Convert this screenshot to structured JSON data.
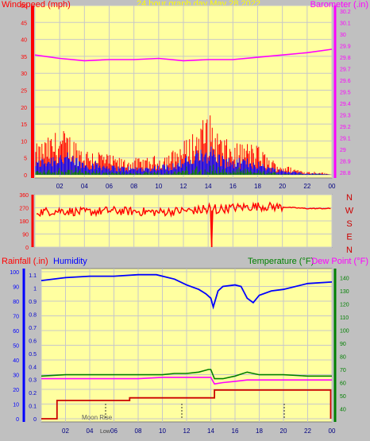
{
  "title": "24 hour graph day   May 28 2022",
  "colors": {
    "background": "#c0c0c0",
    "plot_bg": "#ffffa0",
    "grid": "#c8c8c8",
    "wind": "#ff0000",
    "gust_band": "#0000ff",
    "calm_band": "#008000",
    "barometer": "#ff00ff",
    "humidity": "#0000ff",
    "temperature": "#008000",
    "dewpoint": "#ff00ff",
    "rainfall": "#cc0000"
  },
  "chart_data": [
    {
      "id": "wind-baro",
      "type": "line",
      "labels": {
        "left": "Windspeed (mph)",
        "right": "Barometer (.in)"
      },
      "x_tick_labels": [
        "02",
        "04",
        "06",
        "08",
        "10",
        "12",
        "14",
        "16",
        "18",
        "20",
        "22",
        "00"
      ],
      "y_left": {
        "ticks": [
          0,
          5,
          10,
          15,
          20,
          25,
          30,
          35,
          40,
          45,
          50
        ],
        "range": [
          0,
          50
        ]
      },
      "y_right": {
        "ticks": [
          28.8,
          28.9,
          29.0,
          29.1,
          29.2,
          29.3,
          29.4,
          29.5,
          29.6,
          29.7,
          29.8,
          29.9,
          30.0,
          30.1,
          30.2
        ],
        "labels": [
          "28.8",
          "28.9",
          "29",
          "29.1",
          "29.2",
          "29.3",
          "29.4",
          "29.5",
          "29.6",
          "29.7",
          "29.8",
          "29.9",
          "30",
          "30.1",
          "30.2"
        ],
        "range": [
          28.75,
          30.25
        ]
      },
      "series": [
        {
          "name": "Windspeed",
          "axis": "left",
          "hours": [
            0,
            1,
            2,
            3,
            4,
            5,
            6,
            7,
            8,
            9,
            10,
            11,
            12,
            13,
            14,
            15,
            16,
            17,
            18,
            19,
            20,
            21,
            22,
            23,
            24
          ],
          "peaks": [
            9,
            11,
            14,
            12,
            8,
            8,
            6,
            5,
            5,
            5,
            6,
            7,
            10,
            14,
            19,
            12,
            9,
            10,
            9,
            5,
            3,
            2,
            1,
            1,
            0
          ]
        },
        {
          "name": "Barometer",
          "axis": "right",
          "x": [
            0,
            2,
            4,
            6,
            8,
            10,
            12,
            14,
            16,
            18,
            20,
            22,
            24
          ],
          "values": [
            29.82,
            29.79,
            29.77,
            29.78,
            29.78,
            29.79,
            29.77,
            29.78,
            29.78,
            29.8,
            29.82,
            29.84,
            29.87
          ]
        }
      ]
    },
    {
      "id": "wind-direction",
      "type": "line",
      "y_ticks": [
        0,
        90,
        180,
        270,
        360
      ],
      "y_tick_labels": [
        "0",
        "90",
        "180",
        "270",
        "360"
      ],
      "range": [
        0,
        360
      ],
      "compass_labels": [
        "N",
        "W",
        "S",
        "E",
        "N"
      ],
      "series": [
        {
          "name": "Direction",
          "x": [
            0,
            2,
            4,
            6,
            8,
            10,
            12,
            14,
            16,
            18,
            20,
            22,
            24
          ],
          "values": [
            240,
            250,
            240,
            250,
            245,
            240,
            250,
            255,
            270,
            280,
            275,
            265,
            265
          ]
        }
      ]
    },
    {
      "id": "rain-hum-temp",
      "type": "line",
      "labels": {
        "rain": "Rainfall (.in)",
        "humidity": "Humidity",
        "temperature": "Temperature (°F)",
        "dewpoint": "Dew Point (°F)"
      },
      "y_left_outer": {
        "ticks": [
          0,
          10,
          20,
          30,
          40,
          50,
          60,
          70,
          80,
          90,
          100
        ],
        "range": [
          0,
          100
        ]
      },
      "y_left_inner": {
        "ticks": [
          0,
          0.1,
          0.2,
          0.3,
          0.4,
          0.5,
          0.6,
          0.7,
          0.8,
          0.9,
          1.0,
          1.1
        ],
        "labels": [
          "0",
          "0.1",
          "0.2",
          "0.3",
          "0.4",
          "0.5",
          "0.6",
          "0.7",
          "0.8",
          "0.9",
          "1",
          "1.1"
        ],
        "range": [
          0,
          1.15
        ]
      },
      "y_right": {
        "ticks": [
          40,
          50,
          60,
          70,
          80,
          90,
          100,
          110,
          120,
          130,
          140
        ],
        "range": [
          30,
          147
        ]
      },
      "moon_text": "Moon Rise",
      "low_text": "Low",
      "series": [
        {
          "name": "Humidity",
          "axis": "outer",
          "x": [
            0,
            2,
            4,
            6,
            8,
            9.5,
            11,
            12,
            13,
            13.6,
            14,
            14.2,
            14.6,
            15,
            16,
            16.5,
            17,
            17.5,
            18,
            19,
            20,
            22,
            24
          ],
          "values": [
            94,
            96,
            97,
            97,
            98,
            98,
            95,
            91,
            88,
            85,
            82,
            76,
            87,
            90,
            91,
            90,
            82,
            79,
            84,
            87,
            88,
            92,
            93
          ]
        },
        {
          "name": "Temperature",
          "axis": "right",
          "x": [
            0,
            2,
            4,
            6,
            8,
            10,
            11,
            12,
            13,
            13.8,
            14,
            14.3,
            15,
            16,
            17,
            17.5,
            18,
            20,
            22,
            24
          ],
          "values": [
            65,
            66,
            66,
            66,
            66,
            66,
            67,
            67,
            68,
            70,
            70,
            63,
            63,
            65,
            68,
            67,
            66,
            66,
            65,
            65
          ]
        },
        {
          "name": "Dew Point",
          "axis": "right",
          "x": [
            0,
            2,
            4,
            6,
            8,
            10,
            12,
            13,
            14,
            14.3,
            15,
            16,
            17,
            18,
            20,
            22,
            24
          ],
          "values": [
            63,
            63,
            63,
            63,
            63,
            64,
            64,
            64,
            64,
            59,
            60,
            61,
            62,
            62,
            62,
            62,
            62
          ]
        },
        {
          "name": "Rainfall",
          "axis": "inner",
          "x": [
            0,
            1.3,
            1.3,
            7.3,
            7.3,
            14.3,
            14.3,
            23.9,
            23.9
          ],
          "values": [
            0,
            0,
            0.14,
            0.14,
            0.16,
            0.16,
            0.22,
            0.22,
            0
          ]
        }
      ]
    }
  ]
}
